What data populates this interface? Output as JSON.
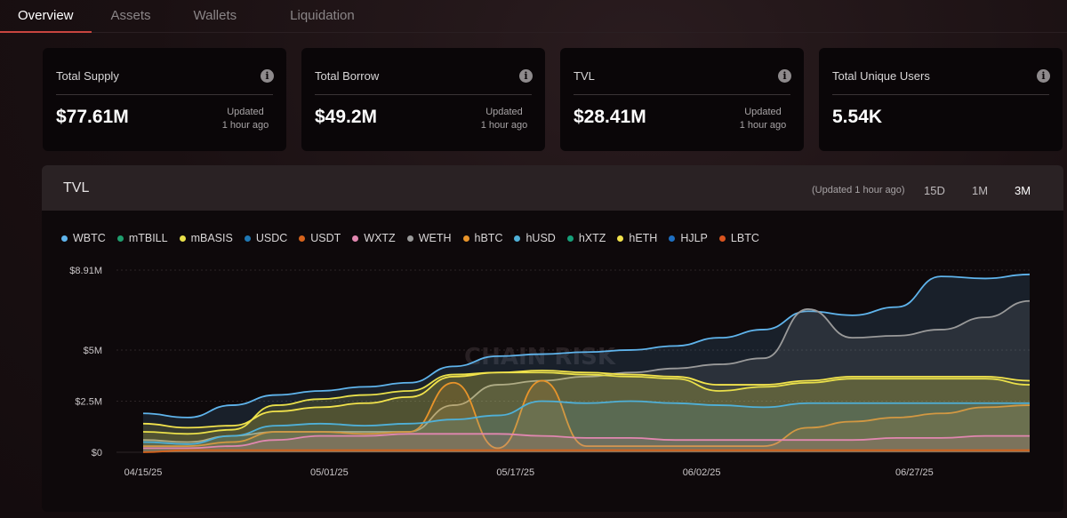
{
  "tabs": [
    "Overview",
    "Assets",
    "Wallets",
    "Liquidation"
  ],
  "cards": [
    {
      "label": "Total Supply",
      "value": "$77.61M",
      "updated_line1": "Updated",
      "updated_line2": "1 hour ago"
    },
    {
      "label": "Total Borrow",
      "value": "$49.2M",
      "updated_line1": "Updated",
      "updated_line2": "1 hour ago"
    },
    {
      "label": "TVL",
      "value": "$28.41M",
      "updated_line1": "Updated",
      "updated_line2": "1 hour ago"
    },
    {
      "label": "Total Unique Users",
      "value": "5.54K",
      "updated_line1": "",
      "updated_line2": ""
    }
  ],
  "info_icon": "i",
  "chart_panel": {
    "title": "TVL",
    "updated": "(Updated 1 hour ago)",
    "ranges": [
      "15D",
      "1M",
      "3M"
    ],
    "active_range": "3M"
  },
  "watermark": "CHAIN RISK",
  "colors": {
    "WBTC": "#5fb4ec",
    "mTBILL": "#1f9e6e",
    "mBASIS": "#e9e04a",
    "USDC": "#1f78b4",
    "USDT": "#d6631c",
    "WXTZ": "#e187b0",
    "WETH": "#9a9a9a",
    "hBTC": "#e8942a",
    "hUSD": "#4fb0d8",
    "hXTZ": "#16a07a",
    "hETH": "#f2e34c",
    "HJLP": "#1e6fc2",
    "LBTC": "#d9541f"
  },
  "chart_data": {
    "type": "area",
    "title": "TVL",
    "y_tick_labels": [
      "$8.91M",
      "$5M",
      "$2.5M",
      "$0"
    ],
    "y_ticks": [
      8.91,
      5,
      2.5,
      0
    ],
    "ylim": [
      0,
      8.91
    ],
    "x_tick_labels": [
      "04/15/25",
      "05/01/25",
      "05/17/25",
      "06/02/25",
      "06/27/25"
    ],
    "x": [
      0,
      5,
      10,
      15,
      20,
      25,
      30,
      35,
      40,
      45,
      50,
      55,
      60,
      65,
      70,
      75,
      80,
      85,
      90,
      95,
      100
    ],
    "series": [
      {
        "name": "WBTC",
        "values": [
          1.9,
          1.7,
          2.3,
          2.8,
          3.0,
          3.2,
          3.4,
          4.2,
          4.7,
          4.8,
          4.9,
          5.0,
          5.2,
          5.6,
          6.0,
          6.9,
          6.7,
          7.1,
          8.6,
          8.5,
          8.7
        ]
      },
      {
        "name": "WETH",
        "values": [
          0.6,
          0.5,
          0.8,
          1.0,
          1.0,
          1.0,
          1.0,
          2.3,
          3.3,
          3.5,
          3.7,
          3.9,
          4.1,
          4.3,
          4.6,
          7.0,
          5.6,
          5.7,
          6.0,
          6.6,
          7.4
        ]
      },
      {
        "name": "mBASIS",
        "values": [
          1.0,
          0.9,
          1.1,
          2.3,
          2.6,
          2.8,
          3.0,
          3.8,
          3.9,
          3.9,
          3.8,
          3.7,
          3.6,
          3.0,
          3.2,
          3.4,
          3.6,
          3.6,
          3.6,
          3.6,
          3.3
        ]
      },
      {
        "name": "hETH",
        "values": [
          1.4,
          1.2,
          1.3,
          2.0,
          2.2,
          2.4,
          2.7,
          3.7,
          3.9,
          4.0,
          3.9,
          3.8,
          3.7,
          3.3,
          3.3,
          3.5,
          3.7,
          3.7,
          3.7,
          3.7,
          3.5
        ]
      },
      {
        "name": "hBTC",
        "values": [
          0.3,
          0.3,
          0.5,
          1.0,
          1.0,
          0.9,
          1.0,
          3.4,
          0.2,
          3.5,
          0.3,
          0.3,
          0.3,
          0.3,
          0.3,
          1.2,
          1.5,
          1.7,
          1.9,
          2.2,
          2.3
        ]
      },
      {
        "name": "hUSD",
        "values": [
          0.5,
          0.4,
          0.8,
          1.3,
          1.4,
          1.3,
          1.4,
          1.6,
          1.8,
          2.5,
          2.4,
          2.5,
          2.4,
          2.3,
          2.2,
          2.4,
          2.4,
          2.4,
          2.4,
          2.4,
          2.4
        ]
      },
      {
        "name": "WXTZ",
        "values": [
          0.2,
          0.2,
          0.3,
          0.6,
          0.8,
          0.8,
          0.9,
          0.9,
          0.9,
          0.8,
          0.7,
          0.7,
          0.6,
          0.6,
          0.6,
          0.6,
          0.6,
          0.7,
          0.7,
          0.8,
          0.8
        ]
      },
      {
        "name": "USDT",
        "values": [
          0.0,
          0.1,
          0.1,
          0.1,
          0.1,
          0.1,
          0.1,
          0.1,
          0.1,
          0.1,
          0.1,
          0.1,
          0.1,
          0.1,
          0.1,
          0.1,
          0.1,
          0.1,
          0.1,
          0.1,
          0.1
        ]
      }
    ]
  }
}
